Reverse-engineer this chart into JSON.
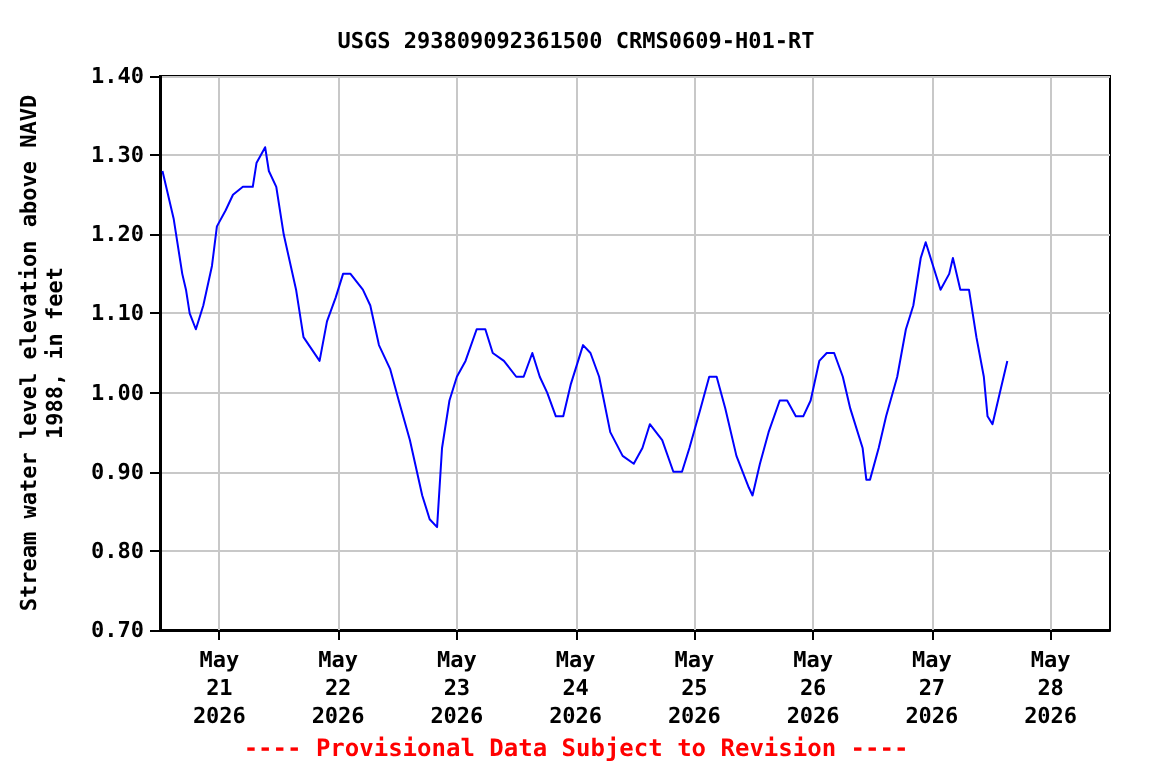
{
  "chart_data": {
    "type": "line",
    "title": "USGS 293809092361500 CRMS0609-H01-RT",
    "ylabel": "Stream water level elevation above NAVD\n1988, in feet",
    "annotations": [
      "---- Provisional Data Subject to Revision ----"
    ],
    "x": [
      "2026-05-20T12:30",
      "2026-05-20T14:45",
      "2026-05-20T16:30",
      "2026-05-20T17:15",
      "2026-05-20T18:00",
      "2026-05-20T19:15",
      "2026-05-20T20:45",
      "2026-05-20T22:30",
      "2026-05-20T23:30",
      "2026-05-21T01:15",
      "2026-05-21T02:45",
      "2026-05-21T04:45",
      "2026-05-21T06:45",
      "2026-05-21T07:30",
      "2026-05-21T09:15",
      "2026-05-21T10:00",
      "2026-05-21T11:30",
      "2026-05-21T13:00",
      "2026-05-21T15:30",
      "2026-05-21T17:00",
      "2026-05-21T20:15",
      "2026-05-21T21:45",
      "2026-05-21T23:30",
      "2026-05-22T01:00",
      "2026-05-22T02:30",
      "2026-05-22T05:00",
      "2026-05-22T06:30",
      "2026-05-22T08:15",
      "2026-05-22T10:30",
      "2026-05-22T12:15",
      "2026-05-22T14:30",
      "2026-05-22T17:00",
      "2026-05-22T18:30",
      "2026-05-22T20:00",
      "2026-05-22T21:00",
      "2026-05-22T22:30",
      "2026-05-23T00:00",
      "2026-05-23T01:45",
      "2026-05-23T04:00",
      "2026-05-23T05:45",
      "2026-05-23T07:15",
      "2026-05-23T09:30",
      "2026-05-23T12:00",
      "2026-05-23T13:30",
      "2026-05-23T15:15",
      "2026-05-23T16:45",
      "2026-05-23T18:15",
      "2026-05-23T20:00",
      "2026-05-23T21:30",
      "2026-05-23T23:00",
      "2026-05-24T01:30",
      "2026-05-24T03:00",
      "2026-05-24T04:45",
      "2026-05-24T07:00",
      "2026-05-24T09:30",
      "2026-05-24T11:45",
      "2026-05-24T13:30",
      "2026-05-24T15:00",
      "2026-05-24T17:30",
      "2026-05-24T19:45",
      "2026-05-24T21:30",
      "2026-05-24T23:00",
      "2026-05-25T01:15",
      "2026-05-25T03:00",
      "2026-05-25T04:30",
      "2026-05-25T06:15",
      "2026-05-25T08:30",
      "2026-05-25T11:00",
      "2026-05-25T11:45",
      "2026-05-25T13:15",
      "2026-05-25T15:00",
      "2026-05-25T17:15",
      "2026-05-25T18:45",
      "2026-05-25T20:30",
      "2026-05-25T22:00",
      "2026-05-25T23:30",
      "2026-05-26T01:15",
      "2026-05-26T02:45",
      "2026-05-26T04:15",
      "2026-05-26T06:00",
      "2026-05-26T07:30",
      "2026-05-26T10:00",
      "2026-05-26T10:45",
      "2026-05-26T11:30",
      "2026-05-26T13:15",
      "2026-05-26T14:45",
      "2026-05-26T17:00",
      "2026-05-26T18:45",
      "2026-05-26T20:15",
      "2026-05-26T21:45",
      "2026-05-26T22:45",
      "2026-05-27T00:15",
      "2026-05-27T01:45",
      "2026-05-27T03:30",
      "2026-05-27T04:15",
      "2026-05-27T05:45",
      "2026-05-27T07:30",
      "2026-05-27T09:00",
      "2026-05-27T10:30",
      "2026-05-27T11:15",
      "2026-05-27T12:15",
      "2026-05-27T13:45",
      "2026-05-27T15:15"
    ],
    "series": [
      {
        "color": "#0000ff",
        "values": [
          1.28,
          1.22,
          1.15,
          1.13,
          1.1,
          1.08,
          1.11,
          1.16,
          1.21,
          1.23,
          1.25,
          1.26,
          1.26,
          1.29,
          1.31,
          1.28,
          1.26,
          1.2,
          1.13,
          1.07,
          1.04,
          1.09,
          1.12,
          1.15,
          1.15,
          1.13,
          1.11,
          1.06,
          1.03,
          0.99,
          0.94,
          0.87,
          0.84,
          0.83,
          0.93,
          0.99,
          1.02,
          1.04,
          1.08,
          1.08,
          1.05,
          1.04,
          1.02,
          1.02,
          1.05,
          1.02,
          1.0,
          0.97,
          0.97,
          1.01,
          1.06,
          1.05,
          1.02,
          0.95,
          0.92,
          0.91,
          0.93,
          0.96,
          0.94,
          0.9,
          0.9,
          0.93,
          0.98,
          1.02,
          1.02,
          0.98,
          0.92,
          0.88,
          0.87,
          0.91,
          0.95,
          0.99,
          0.99,
          0.97,
          0.97,
          0.99,
          1.04,
          1.05,
          1.05,
          1.02,
          0.98,
          0.93,
          0.89,
          0.89,
          0.93,
          0.97,
          1.02,
          1.08,
          1.11,
          1.17,
          1.19,
          1.16,
          1.13,
          1.15,
          1.17,
          1.13,
          1.13,
          1.07,
          1.02,
          0.97,
          0.96,
          1.0,
          1.04
        ]
      }
    ],
    "xlim": [
      "2026-05-20T12:00",
      "2026-05-28T12:00"
    ],
    "xticks": [
      {
        "value": "2026-05-21",
        "label": "May\n21\n2026"
      },
      {
        "value": "2026-05-22",
        "label": "May\n22\n2026"
      },
      {
        "value": "2026-05-23",
        "label": "May\n23\n2026"
      },
      {
        "value": "2026-05-24",
        "label": "May\n24\n2026"
      },
      {
        "value": "2026-05-25",
        "label": "May\n25\n2026"
      },
      {
        "value": "2026-05-26",
        "label": "May\n26\n2026"
      },
      {
        "value": "2026-05-27",
        "label": "May\n27\n2026"
      },
      {
        "value": "2026-05-28",
        "label": "May\n28\n2026"
      }
    ],
    "ylim": [
      0.7,
      1.4
    ],
    "yticks": [
      {
        "value": 0.7,
        "label": "0.70"
      },
      {
        "value": 0.8,
        "label": "0.80"
      },
      {
        "value": 0.9,
        "label": "0.90"
      },
      {
        "value": 1.0,
        "label": "1.00"
      },
      {
        "value": 1.1,
        "label": "1.10"
      },
      {
        "value": 1.2,
        "label": "1.20"
      },
      {
        "value": 1.3,
        "label": "1.30"
      },
      {
        "value": 1.4,
        "label": "1.40"
      }
    ],
    "grid": true,
    "marker": "none",
    "line_style": "solid"
  }
}
